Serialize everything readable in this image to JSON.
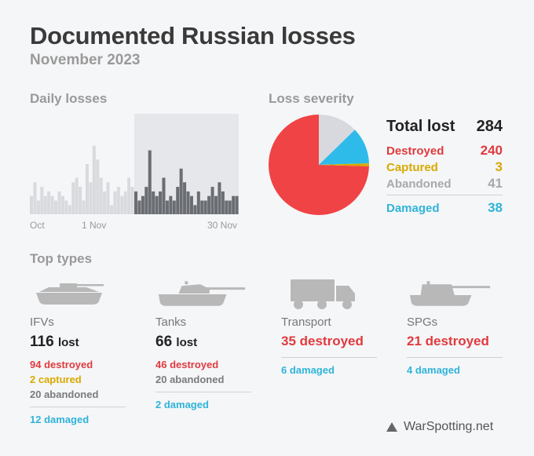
{
  "header": {
    "title": "Documented Russian losses",
    "subtitle": "November 2023"
  },
  "sections": {
    "daily": "Daily losses",
    "severity": "Loss severity",
    "types": "Top types"
  },
  "chart_data": [
    {
      "type": "bar",
      "title": "Daily losses",
      "x_ticks": [
        "Oct",
        "1 Nov",
        "30 Nov"
      ],
      "series": [
        {
          "values": [
            4,
            7,
            3,
            6,
            4,
            5,
            4,
            3,
            5,
            4,
            3,
            2,
            7,
            8,
            6,
            3,
            11,
            7,
            15,
            12,
            8,
            5,
            7,
            2,
            5,
            6,
            4,
            5,
            8,
            6,
            5,
            3,
            4,
            6,
            14,
            5,
            4,
            5,
            8,
            3,
            4,
            3,
            6,
            10,
            7,
            5,
            4,
            2,
            5,
            3,
            3,
            4,
            6,
            4,
            7,
            5,
            3,
            3,
            4,
            4
          ]
        }
      ],
      "highlight_start_index": 30,
      "ylim": [
        0,
        22
      ]
    },
    {
      "type": "pie",
      "title": "Loss severity",
      "slices": [
        {
          "label": "Destroyed",
          "value": 240,
          "color": "#f04345"
        },
        {
          "label": "Abandoned",
          "value": 41,
          "color": "#d7d9df"
        },
        {
          "label": "Damaged",
          "value": 38,
          "color": "#2ebbea"
        },
        {
          "label": "Captured",
          "value": 3,
          "color": "#d8aa00"
        }
      ]
    }
  ],
  "severity": {
    "total_label": "Total lost",
    "total_value": "284",
    "rows": [
      {
        "label": "Destroyed",
        "value": "240"
      },
      {
        "label": "Captured",
        "value": "3"
      },
      {
        "label": "Abandoned",
        "value": "41"
      },
      {
        "label": "Damaged",
        "value": "38"
      }
    ]
  },
  "types": [
    {
      "name": "IFVs",
      "lost": "116",
      "lost_unit": "lost",
      "destroyed": "94 destroyed",
      "captured": "2 captured",
      "abandoned": "20 abandoned",
      "damaged": "12 damaged"
    },
    {
      "name": "Tanks",
      "lost": "66",
      "lost_unit": "lost",
      "destroyed": "46 destroyed",
      "abandoned": "20 abandoned",
      "damaged": "2 damaged"
    },
    {
      "name": "Transport",
      "destroyed": "35 destroyed",
      "damaged": "6 damaged"
    },
    {
      "name": "SPGs",
      "destroyed": "21 destroyed",
      "damaged": "4 damaged"
    }
  ],
  "footer": {
    "source": "WarSpotting.net",
    "icon": "triangle-logo-icon"
  },
  "colors": {
    "destroyed": "#e03a3e",
    "captured": "#d8aa00",
    "abandoned": "#7b7b7b",
    "damaged": "#2fb3d9",
    "bar_past": "#d8dadd",
    "bar_current": "#6a6d72",
    "plot_bg_current": "#e6e7ea"
  }
}
